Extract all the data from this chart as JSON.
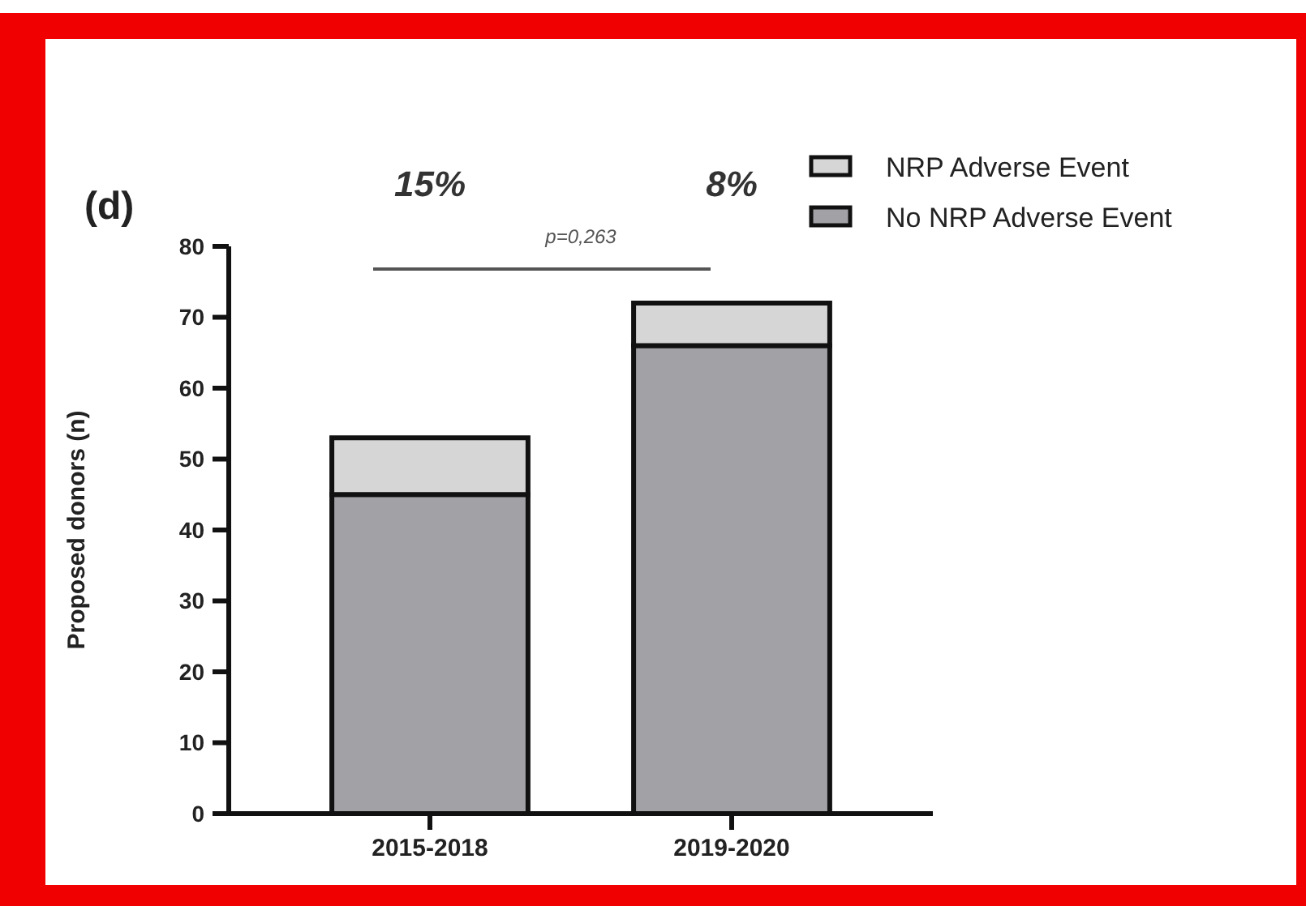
{
  "chart_data": {
    "type": "bar",
    "stacked": true,
    "ylabel": "Proposed donors (n)",
    "categories": [
      "2015-2018",
      "2019-2020"
    ],
    "series": [
      {
        "name": "No NRP Adverse Event",
        "color": "#a2a1a6",
        "values": [
          45,
          66
        ]
      },
      {
        "name": "NRP Adverse Event",
        "color": "#d6d6d6",
        "values": [
          8,
          6
        ]
      }
    ],
    "ylim": [
      0,
      80
    ],
    "yticks": [
      0,
      10,
      20,
      30,
      40,
      50,
      60,
      70,
      80
    ],
    "grid": false,
    "legend": "top right",
    "annotations": [
      "(d)",
      "15%",
      "8%",
      "p=0,263"
    ]
  }
}
